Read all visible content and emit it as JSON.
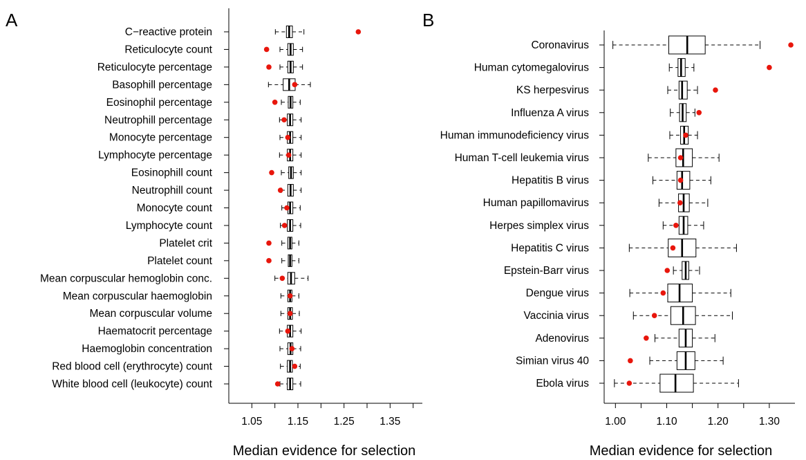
{
  "chart_data": [
    {
      "panel_label": "A",
      "type": "boxplot",
      "orientation": "horizontal",
      "xlabel": "Median evidence for selection",
      "xlim": [
        1.0,
        1.42
      ],
      "xticks": [
        1.05,
        1.15,
        1.25,
        1.35
      ],
      "xtick_labels": [
        "1.05",
        "1.15",
        "1.25",
        "1.35"
      ],
      "categories": [
        {
          "name": "C−reactive protein",
          "whisker_low": 1.101,
          "q1": 1.125,
          "median": 1.131,
          "q3": 1.138,
          "whisker_high": 1.163,
          "point": 1.281
        },
        {
          "name": "Reticulocyte count",
          "whisker_low": 1.111,
          "q1": 1.128,
          "median": 1.134,
          "q3": 1.14,
          "whisker_high": 1.16,
          "point": 1.082
        },
        {
          "name": "Reticulocyte percentage",
          "whisker_low": 1.111,
          "q1": 1.128,
          "median": 1.134,
          "q3": 1.14,
          "whisker_high": 1.16,
          "point": 1.087
        },
        {
          "name": "Basophill percentage",
          "whisker_low": 1.086,
          "q1": 1.118,
          "median": 1.131,
          "q3": 1.144,
          "whisker_high": 1.177,
          "point": 1.143
        },
        {
          "name": "Eosinophil percentage",
          "whisker_low": 1.114,
          "q1": 1.129,
          "median": 1.134,
          "q3": 1.139,
          "whisker_high": 1.155,
          "point": 1.1
        },
        {
          "name": "Neutrophill percentage",
          "whisker_low": 1.11,
          "q1": 1.127,
          "median": 1.133,
          "q3": 1.139,
          "whisker_high": 1.157,
          "point": 1.12
        },
        {
          "name": "Monocyte percentage",
          "whisker_low": 1.111,
          "q1": 1.127,
          "median": 1.133,
          "q3": 1.139,
          "whisker_high": 1.157,
          "point": 1.128
        },
        {
          "name": "Lymphocyte percentage",
          "whisker_low": 1.11,
          "q1": 1.127,
          "median": 1.133,
          "q3": 1.139,
          "whisker_high": 1.157,
          "point": 1.13
        },
        {
          "name": "Eosinophill count",
          "whisker_low": 1.114,
          "q1": 1.13,
          "median": 1.135,
          "q3": 1.14,
          "whisker_high": 1.157,
          "point": 1.093
        },
        {
          "name": "Neutrophill count",
          "whisker_low": 1.114,
          "q1": 1.128,
          "median": 1.134,
          "q3": 1.14,
          "whisker_high": 1.157,
          "point": 1.112
        },
        {
          "name": "Monocyte count",
          "whisker_low": 1.115,
          "q1": 1.128,
          "median": 1.133,
          "q3": 1.139,
          "whisker_high": 1.155,
          "point": 1.126
        },
        {
          "name": "Lymphocyte count",
          "whisker_low": 1.112,
          "q1": 1.127,
          "median": 1.133,
          "q3": 1.139,
          "whisker_high": 1.156,
          "point": 1.121
        },
        {
          "name": "Platelet crit",
          "whisker_low": 1.115,
          "q1": 1.128,
          "median": 1.133,
          "q3": 1.137,
          "whisker_high": 1.152,
          "point": 1.087
        },
        {
          "name": "Platelet count",
          "whisker_low": 1.115,
          "q1": 1.129,
          "median": 1.133,
          "q3": 1.137,
          "whisker_high": 1.152,
          "point": 1.087
        },
        {
          "name": "Mean corpuscular hemoglobin conc.",
          "whisker_low": 1.1,
          "q1": 1.128,
          "median": 1.135,
          "q3": 1.143,
          "whisker_high": 1.172,
          "point": 1.116
        },
        {
          "name": "Mean corpuscular haemoglobin",
          "whisker_low": 1.113,
          "q1": 1.128,
          "median": 1.133,
          "q3": 1.137,
          "whisker_high": 1.152,
          "point": 1.133
        },
        {
          "name": "Mean corpuscular volume",
          "whisker_low": 1.113,
          "q1": 1.128,
          "median": 1.133,
          "q3": 1.138,
          "whisker_high": 1.153,
          "point": 1.133
        },
        {
          "name": "Haematocrit percentage",
          "whisker_low": 1.11,
          "q1": 1.127,
          "median": 1.133,
          "q3": 1.139,
          "whisker_high": 1.157,
          "point": 1.128
        },
        {
          "name": "Haemoglobin concentration",
          "whisker_low": 1.111,
          "q1": 1.128,
          "median": 1.134,
          "q3": 1.139,
          "whisker_high": 1.156,
          "point": 1.137
        },
        {
          "name": "Red blood cell (erythrocyte) count",
          "whisker_low": 1.112,
          "q1": 1.127,
          "median": 1.133,
          "q3": 1.138,
          "whisker_high": 1.155,
          "point": 1.143
        },
        {
          "name": "White blood cell (leukocyte) count",
          "whisker_low": 1.111,
          "q1": 1.127,
          "median": 1.133,
          "q3": 1.139,
          "whisker_high": 1.156,
          "point": 1.106
        }
      ]
    },
    {
      "panel_label": "B",
      "type": "boxplot",
      "orientation": "horizontal",
      "xlabel": "Median evidence for selection",
      "xlim": [
        0.978,
        1.35
      ],
      "xticks": [
        1.0,
        1.1,
        1.2,
        1.3
      ],
      "xtick_labels": [
        "1.00",
        "1.10",
        "1.20",
        "1.30"
      ],
      "categories": [
        {
          "name": "Coronavirus",
          "whisker_low": 0.995,
          "q1": 1.104,
          "median": 1.14,
          "q3": 1.175,
          "whisker_high": 1.282,
          "point": 1.342
        },
        {
          "name": "Human cytomegalovirus",
          "whisker_low": 1.105,
          "q1": 1.122,
          "median": 1.128,
          "q3": 1.136,
          "whisker_high": 1.153,
          "point": 1.3
        },
        {
          "name": "KS herpesvirus",
          "whisker_low": 1.102,
          "q1": 1.124,
          "median": 1.13,
          "q3": 1.14,
          "whisker_high": 1.16,
          "point": 1.195
        },
        {
          "name": "Influenza A virus",
          "whisker_low": 1.107,
          "q1": 1.125,
          "median": 1.131,
          "q3": 1.138,
          "whisker_high": 1.155,
          "point": 1.163
        },
        {
          "name": "Human immunodeficiency virus",
          "whisker_low": 1.106,
          "q1": 1.127,
          "median": 1.134,
          "q3": 1.142,
          "whisker_high": 1.16,
          "point": 1.137
        },
        {
          "name": "Human T-cell leukemia virus",
          "whisker_low": 1.064,
          "q1": 1.118,
          "median": 1.132,
          "q3": 1.15,
          "whisker_high": 1.202,
          "point": 1.127
        },
        {
          "name": "Hepatitis B virus",
          "whisker_low": 1.073,
          "q1": 1.12,
          "median": 1.13,
          "q3": 1.145,
          "whisker_high": 1.186,
          "point": 1.127
        },
        {
          "name": "Human papillomavirus",
          "whisker_low": 1.085,
          "q1": 1.123,
          "median": 1.133,
          "q3": 1.144,
          "whisker_high": 1.18,
          "point": 1.126
        },
        {
          "name": "Herpes simplex virus",
          "whisker_low": 1.093,
          "q1": 1.124,
          "median": 1.133,
          "q3": 1.141,
          "whisker_high": 1.172,
          "point": 1.118
        },
        {
          "name": "Hepatitis C virus",
          "whisker_low": 1.027,
          "q1": 1.103,
          "median": 1.13,
          "q3": 1.157,
          "whisker_high": 1.236,
          "point": 1.112
        },
        {
          "name": "Epstein-Barr virus",
          "whisker_low": 1.113,
          "q1": 1.13,
          "median": 1.137,
          "q3": 1.143,
          "whisker_high": 1.164,
          "point": 1.101
        },
        {
          "name": "Dengue virus",
          "whisker_low": 1.028,
          "q1": 1.102,
          "median": 1.125,
          "q3": 1.15,
          "whisker_high": 1.225,
          "point": 1.093
        },
        {
          "name": "Vaccinia virus",
          "whisker_low": 1.035,
          "q1": 1.108,
          "median": 1.132,
          "q3": 1.156,
          "whisker_high": 1.228,
          "point": 1.076
        },
        {
          "name": "Adenovirus",
          "whisker_low": 1.077,
          "q1": 1.124,
          "median": 1.137,
          "q3": 1.15,
          "whisker_high": 1.194,
          "point": 1.06
        },
        {
          "name": "Simian virus 40",
          "whisker_low": 1.067,
          "q1": 1.12,
          "median": 1.137,
          "q3": 1.155,
          "whisker_high": 1.21,
          "point": 1.029
        },
        {
          "name": "Ebola virus",
          "whisker_low": 0.998,
          "q1": 1.087,
          "median": 1.117,
          "q3": 1.152,
          "whisker_high": 1.24,
          "point": 1.027
        }
      ]
    }
  ]
}
